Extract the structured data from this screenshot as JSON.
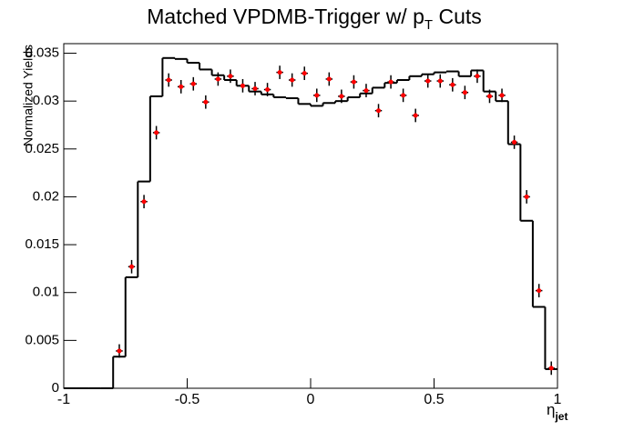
{
  "chart_data": {
    "type": "histogram",
    "title": [
      "Matched VPDMB-Trigger w/ p",
      "T",
      " Cuts"
    ],
    "y_label": "Normalized Yields",
    "x_label": [
      "η",
      "jet"
    ],
    "bins": [
      -1,
      -0.95,
      -0.9,
      -0.85,
      -0.8,
      -0.75,
      -0.7,
      -0.65,
      -0.6,
      -0.55,
      -0.5,
      -0.45,
      -0.4,
      -0.35,
      -0.3,
      -0.25,
      -0.2,
      -0.15,
      -0.1,
      -0.05,
      0,
      0.05,
      0.1,
      0.15,
      0.2,
      0.25,
      0.3,
      0.35,
      0.4,
      0.45,
      0.5,
      0.55,
      0.6,
      0.65,
      0.7,
      0.75,
      0.8,
      0.85,
      0.9,
      0.95,
      1
    ],
    "counts": [
      0,
      0,
      0,
      0,
      0.0033,
      0.0116,
      0.0216,
      0.0305,
      0.0345,
      0.0344,
      0.034,
      0.0333,
      0.0327,
      0.0322,
      0.0316,
      0.031,
      0.0307,
      0.0304,
      0.0303,
      0.0297,
      0.0295,
      0.0298,
      0.03,
      0.0304,
      0.0308,
      0.0314,
      0.0319,
      0.0322,
      0.0326,
      0.0328,
      0.033,
      0.0331,
      0.0326,
      0.0332,
      0.031,
      0.03,
      0.0255,
      0.0175,
      0.0085,
      0.002
    ],
    "color": "#000000",
    "points": {
      "color": "#ff0000",
      "x": [
        -0.775,
        -0.725,
        -0.675,
        -0.625,
        -0.575,
        -0.525,
        -0.475,
        -0.425,
        -0.375,
        -0.325,
        -0.275,
        -0.225,
        -0.175,
        -0.125,
        -0.075,
        -0.025,
        0.025,
        0.075,
        0.125,
        0.175,
        0.225,
        0.275,
        0.325,
        0.375,
        0.425,
        0.475,
        0.525,
        0.575,
        0.625,
        0.675,
        0.725,
        0.775,
        0.825,
        0.875,
        0.925,
        0.975
      ],
      "values": [
        0.0039,
        0.0127,
        0.0195,
        0.0267,
        0.0322,
        0.0315,
        0.0318,
        0.0299,
        0.0323,
        0.0326,
        0.0316,
        0.0313,
        0.0312,
        0.033,
        0.0322,
        0.0329,
        0.0306,
        0.0323,
        0.0305,
        0.032,
        0.0311,
        0.029,
        0.032,
        0.0306,
        0.0285,
        0.0321,
        0.0321,
        0.0317,
        0.0309,
        0.0326,
        0.0305,
        0.0306,
        0.0257,
        0.02,
        0.0102,
        0.0021
      ],
      "errors": [
        0.0007,
        0.0007,
        0.0007,
        0.0007,
        0.0007,
        0.0007,
        0.0007,
        0.0007,
        0.0007,
        0.0007,
        0.0007,
        0.0007,
        0.0007,
        0.0007,
        0.0007,
        0.0007,
        0.0007,
        0.0007,
        0.0007,
        0.0007,
        0.0007,
        0.0007,
        0.0007,
        0.0007,
        0.0007,
        0.0007,
        0.0007,
        0.0007,
        0.0007,
        0.0007,
        0.0007,
        0.0007,
        0.0007,
        0.0007,
        0.0007,
        0.0007
      ]
    },
    "xlim": [
      -1,
      1
    ],
    "ylim": [
      0,
      0.036
    ],
    "xticks": [
      -1,
      -0.5,
      0,
      0.5,
      1
    ],
    "yticks": [
      0,
      0.005,
      0.01,
      0.015,
      0.02,
      0.025,
      0.03,
      0.035
    ]
  }
}
